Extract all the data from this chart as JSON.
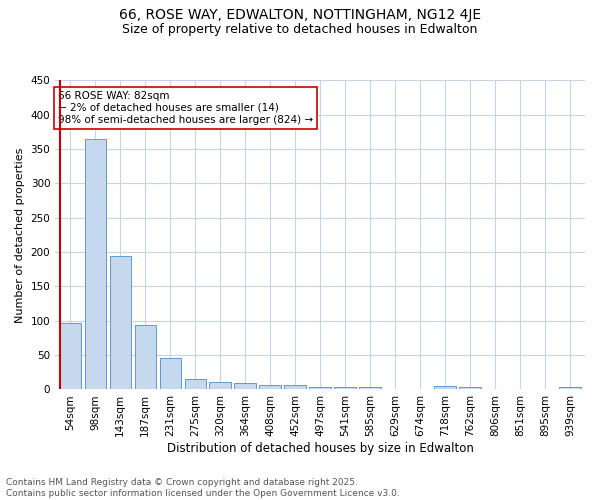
{
  "title_line1": "66, ROSE WAY, EDWALTON, NOTTINGHAM, NG12 4JE",
  "title_line2": "Size of property relative to detached houses in Edwalton",
  "xlabel": "Distribution of detached houses by size in Edwalton",
  "ylabel": "Number of detached properties",
  "categories": [
    "54sqm",
    "98sqm",
    "143sqm",
    "187sqm",
    "231sqm",
    "275sqm",
    "320sqm",
    "364sqm",
    "408sqm",
    "452sqm",
    "497sqm",
    "541sqm",
    "585sqm",
    "629sqm",
    "674sqm",
    "718sqm",
    "762sqm",
    "806sqm",
    "851sqm",
    "895sqm",
    "939sqm"
  ],
  "values": [
    97,
    365,
    195,
    94,
    46,
    15,
    11,
    10,
    7,
    6,
    4,
    4,
    4,
    0,
    0,
    5,
    4,
    0,
    0,
    0,
    3
  ],
  "bar_color": "#c5d8ed",
  "bar_edge_color": "#5b9bd5",
  "marker_color": "#cc0000",
  "annotation_text": "66 ROSE WAY: 82sqm\n← 2% of detached houses are smaller (14)\n98% of semi-detached houses are larger (824) →",
  "annotation_box_color": "#ffffff",
  "annotation_box_edge": "#cc0000",
  "ylim": [
    0,
    450
  ],
  "yticks": [
    0,
    50,
    100,
    150,
    200,
    250,
    300,
    350,
    400,
    450
  ],
  "background_color": "#ffffff",
  "grid_color": "#c8d4e3",
  "footer_text": "Contains HM Land Registry data © Crown copyright and database right 2025.\nContains public sector information licensed under the Open Government Licence v3.0.",
  "title_fontsize": 10,
  "subtitle_fontsize": 9,
  "xlabel_fontsize": 8.5,
  "ylabel_fontsize": 8,
  "tick_fontsize": 7.5,
  "annotation_fontsize": 7.5,
  "footer_fontsize": 6.5
}
